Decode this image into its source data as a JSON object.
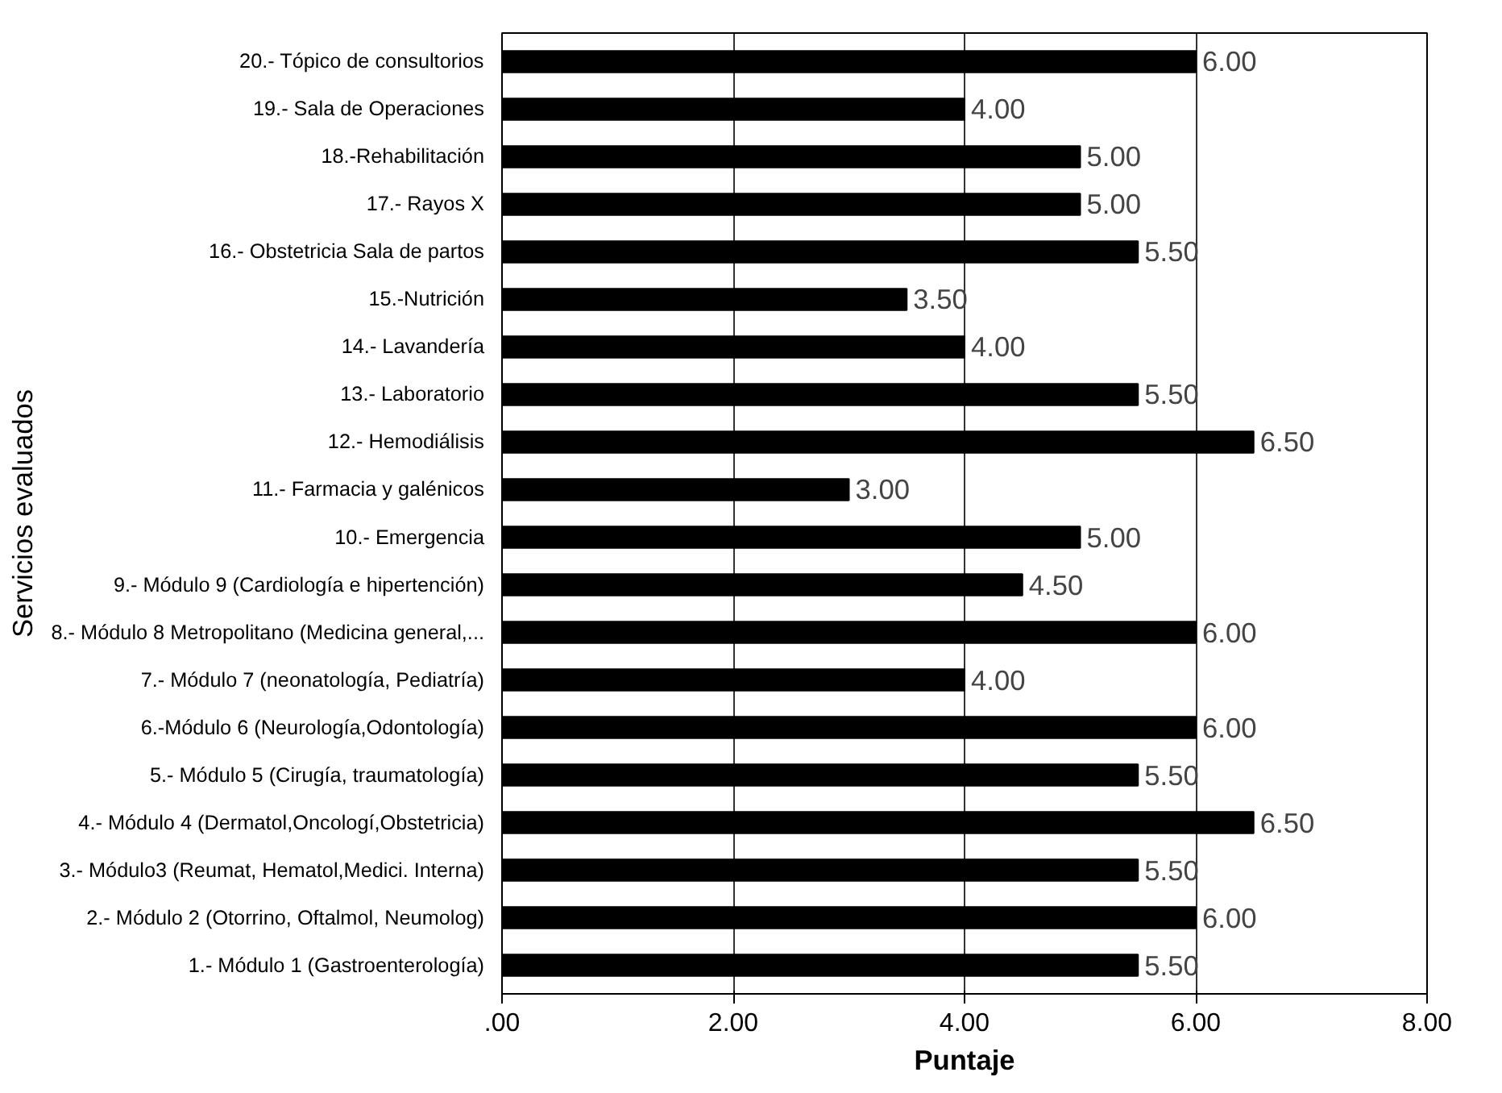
{
  "chart_data": {
    "type": "bar",
    "orientation": "horizontal",
    "xlabel": "Puntaje",
    "ylabel": "Servicios evaluados",
    "categories": [
      "20.- Tópico de consultorios",
      "19.- Sala de Operaciones",
      "18.-Rehabilitación",
      "17.- Rayos X",
      "16.- Obstetricia Sala de partos",
      "15.-Nutrición",
      "14.- Lavandería",
      "13.- Laboratorio",
      "12.- Hemodiálisis",
      "11.- Farmacia y galénicos",
      "10.- Emergencia",
      "9.- Módulo 9 (Cardiología e hipertención)",
      "8.- Módulo 8 Metropolitano (Medicina general,...",
      "7.- Módulo 7 (neonatología, Pediatría)",
      "6.-Módulo 6 (Neurología,Odontología)",
      "5.- Módulo 5 (Cirugía, traumatología)",
      "4.- Módulo 4 (Dermatol,Oncologí,Obstetricia)",
      "3.- Módulo3 (Reumat, Hematol,Medici. Interna)",
      "2.- Módulo 2 (Otorrino, Oftalmol, Neumolog)",
      "1.- Módulo 1 (Gastroenterología)"
    ],
    "values": [
      6.0,
      4.0,
      5.0,
      5.0,
      5.5,
      3.5,
      4.0,
      5.5,
      6.5,
      3.0,
      5.0,
      4.5,
      6.0,
      4.0,
      6.0,
      5.5,
      6.5,
      5.5,
      6.0,
      5.5
    ],
    "value_labels": [
      "6.00",
      "4.00",
      "5.00",
      "5.00",
      "5.50",
      "3.50",
      "4.00",
      "5.50",
      "6.50",
      "3.00",
      "5.00",
      "4.50",
      "6.00",
      "4.00",
      "6.00",
      "5.50",
      "6.50",
      "5.50",
      "6.00",
      "5.50"
    ],
    "color": "#000000",
    "xlim": [
      0,
      8
    ],
    "xticks": [
      {
        "value": 0,
        "label": ".00"
      },
      {
        "value": 2,
        "label": "2.00"
      },
      {
        "value": 4,
        "label": "4.00"
      },
      {
        "value": 6,
        "label": "6.00"
      },
      {
        "value": 8,
        "label": "8.00"
      }
    ],
    "grid": "x"
  }
}
